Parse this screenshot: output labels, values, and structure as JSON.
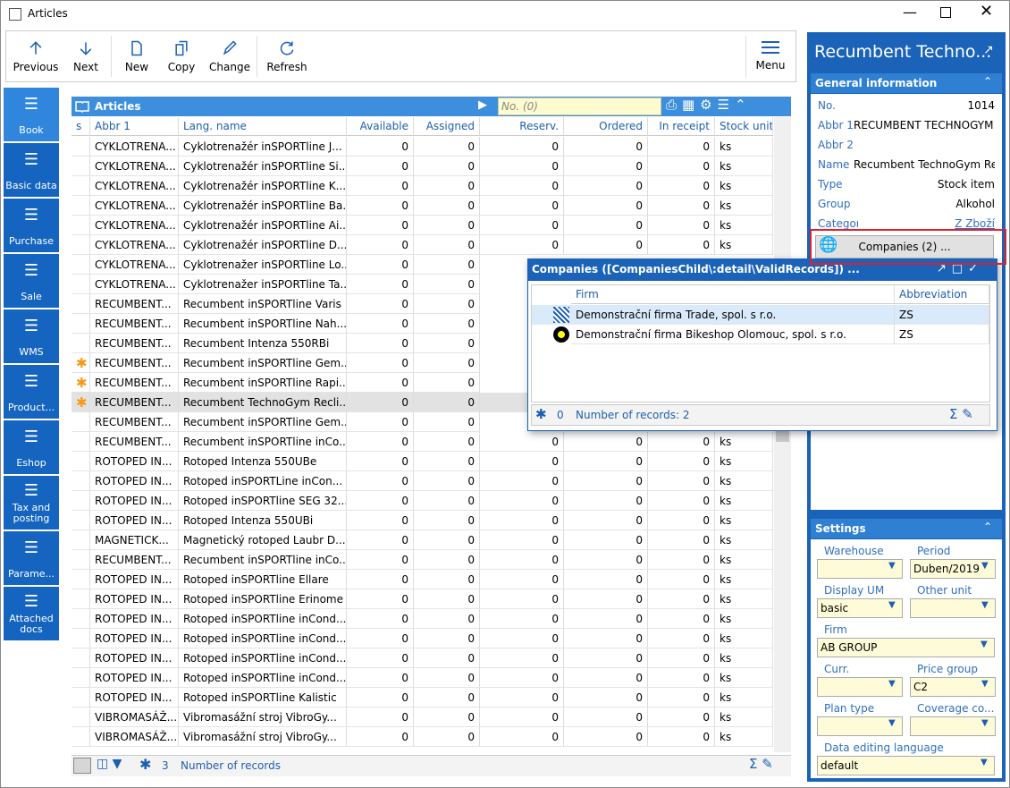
{
  "window": {
    "title": "Articles"
  },
  "toolbar": {
    "buttons": [
      "Previous",
      "Next",
      "New",
      "Copy",
      "Change",
      "Refresh"
    ],
    "menu": "Menu"
  },
  "sidebar": {
    "items": [
      "Book",
      "Basic data",
      "Purchase",
      "Sale",
      "WMS",
      "Product...",
      "Eshop",
      "Tax and posting",
      "Parame...",
      "Attached docs"
    ]
  },
  "grid": {
    "title": "Articles",
    "search_placeholder": "No. (0)",
    "columns": [
      "s",
      "Abbr 1",
      "Lang. name",
      "Available",
      "Assigned",
      "Reserv.",
      "Ordered",
      "In receipt",
      "Stock unit"
    ],
    "rows": [
      {
        "cells": [
          "CYKLOTRENA...",
          "Cyklotrenažér inSPORTline J...",
          0,
          0,
          0,
          0,
          0,
          "ks"
        ]
      },
      {
        "cells": [
          "CYKLOTRENA...",
          "Cyklotrenažér inSPORTline Si...",
          0,
          0,
          0,
          0,
          0,
          "ks"
        ]
      },
      {
        "cells": [
          "CYKLOTRENA...",
          "Cyklotrenažér inSPORTline K...",
          0,
          0,
          0,
          0,
          0,
          "ks"
        ]
      },
      {
        "cells": [
          "CYKLOTRENA...",
          "Cyklotrenažér inSPORTline Ba...",
          0,
          0,
          0,
          0,
          0,
          "ks"
        ]
      },
      {
        "cells": [
          "CYKLOTRENA...",
          "Cyklotrenažér inSPORTline Ai...",
          0,
          0,
          0,
          0,
          0,
          "ks"
        ]
      },
      {
        "cells": [
          "CYKLOTRENA...",
          "Cyklotrenažér inSPORTline D...",
          0,
          0,
          0,
          0,
          0,
          "ks"
        ]
      },
      {
        "cells": [
          "CYKLOTRENA...",
          "Cyklotrenažer inSPORTline Lo...",
          0,
          0,
          null,
          null,
          null,
          null
        ]
      },
      {
        "cells": [
          "CYKLOTRENA...",
          "Cyklotrenažer inSPORTline Ta...",
          0,
          0,
          null,
          null,
          null,
          null
        ]
      },
      {
        "cells": [
          "RECUMBENT...",
          "Recumbent inSPORTline Varis",
          0,
          0,
          null,
          null,
          null,
          null
        ]
      },
      {
        "cells": [
          "RECUMBENT...",
          "Recumbent inSPORTline Nah...",
          0,
          0,
          null,
          null,
          null,
          null
        ]
      },
      {
        "cells": [
          "RECUMBENT...",
          "Recumbent Intenza 550RBi",
          0,
          0,
          null,
          null,
          null,
          null
        ]
      },
      {
        "s": true,
        "cells": [
          "RECUMBENT...",
          "Recumbent inSPORTline Gem...",
          0,
          0,
          null,
          null,
          null,
          null
        ]
      },
      {
        "s": true,
        "cells": [
          "RECUMBENT...",
          "Recumbent inSPORTline Rapi...",
          0,
          0,
          null,
          null,
          null,
          null
        ]
      },
      {
        "s": true,
        "selected": true,
        "cells": [
          "RECUMBENT...",
          "Recumbent TechnoGym Recli...",
          0,
          0,
          null,
          null,
          null,
          null
        ]
      },
      {
        "cells": [
          "RECUMBENT...",
          "Recumbent inSPORTline Gem...",
          0,
          0,
          null,
          null,
          null,
          null
        ]
      },
      {
        "cells": [
          "RECUMBENT...",
          "Recumbent inSPORTline inCo...",
          0,
          0,
          0,
          0,
          0,
          "ks"
        ]
      },
      {
        "cells": [
          "ROTOPED IN...",
          "Rotoped Intenza 550UBe",
          0,
          0,
          0,
          0,
          0,
          "ks"
        ]
      },
      {
        "cells": [
          "ROTOPED IN...",
          "Rotoped inSPORTLine inCon...",
          0,
          0,
          0,
          0,
          0,
          "ks"
        ]
      },
      {
        "cells": [
          "ROTOPED IN...",
          "Rotoped inSPORTline SEG 32...",
          0,
          0,
          0,
          0,
          0,
          "ks"
        ]
      },
      {
        "cells": [
          "ROTOPED IN...",
          "Rotoped Intenza 550UBi",
          0,
          0,
          0,
          0,
          0,
          "ks"
        ]
      },
      {
        "cells": [
          "MAGNETICK...",
          "Magnetický rotoped Laubr D...",
          0,
          0,
          0,
          0,
          0,
          "ks"
        ]
      },
      {
        "cells": [
          "RECUMBENT...",
          "Recumbent inSPORTline inCo...",
          0,
          0,
          0,
          0,
          0,
          "ks"
        ]
      },
      {
        "cells": [
          "ROTOPED IN...",
          "Rotoped inSPORTline Ellare",
          0,
          0,
          0,
          0,
          0,
          "ks"
        ]
      },
      {
        "cells": [
          "ROTOPED IN...",
          "Rotoped inSPORTline Erinome",
          0,
          0,
          0,
          0,
          0,
          "ks"
        ]
      },
      {
        "cells": [
          "ROTOPED IN...",
          "Rotoped inSPORTline inCond...",
          0,
          0,
          0,
          0,
          0,
          "ks"
        ]
      },
      {
        "cells": [
          "ROTOPED IN...",
          "Rotoped inSPORTline inCond...",
          0,
          0,
          0,
          0,
          0,
          "ks"
        ]
      },
      {
        "cells": [
          "ROTOPED IN...",
          "Rotoped inSPORTline inCond...",
          0,
          0,
          0,
          0,
          0,
          "ks"
        ]
      },
      {
        "cells": [
          "ROTOPED IN...",
          "Rotoped inSPORTline inCond...",
          0,
          0,
          0,
          0,
          0,
          "ks"
        ]
      },
      {
        "cells": [
          "ROTOPED IN...",
          "Rotoped inSPORTline Kalistic",
          0,
          0,
          0,
          0,
          0,
          "ks"
        ]
      },
      {
        "cells": [
          "VIBROMASÁŽ...",
          "Vibromasážní stroj VibroGy...",
          0,
          0,
          0,
          0,
          0,
          "ks"
        ]
      },
      {
        "cells": [
          "VIBROMASÁŽ...",
          "Vibromasážní stroj VibroGy...",
          0,
          0,
          0,
          0,
          0,
          "ks"
        ]
      }
    ],
    "footer": {
      "count": 3,
      "label": "Number of records"
    }
  },
  "detail": {
    "title": "Recumbent Techno...",
    "general": {
      "header": "General information",
      "fields": [
        [
          "No.",
          "1014"
        ],
        [
          "Abbr 1",
          "RECUMBENT TECHNOGYM ..."
        ],
        [
          "Abbr 2",
          null
        ],
        [
          "Name",
          "Recumbent TechnoGym Recl..."
        ],
        [
          "Type",
          "Stock item"
        ],
        [
          "Group",
          "Alkohol"
        ],
        [
          "Category",
          "Z Zboží"
        ]
      ],
      "companies_button": "Companies (2) ..."
    },
    "settings": {
      "header": "Settings",
      "fields": [
        [
          "Warehouse",
          null
        ],
        [
          "Period",
          "Duben/2019"
        ],
        [
          "Display UM",
          "basic"
        ],
        [
          "Other unit",
          null
        ],
        [
          "Firm",
          "AB GROUP"
        ],
        [
          "Curr.",
          null
        ],
        [
          "Price group",
          "C2"
        ],
        [
          "Plan type",
          null
        ],
        [
          "Coverage co...",
          null
        ],
        [
          "Data editing language",
          "default"
        ]
      ]
    }
  },
  "popup": {
    "title": "Companies ([CompaniesChild\\:detail\\ValidRecords]) ...",
    "columns": [
      "Firm",
      "Abbreviation"
    ],
    "rows": [
      [
        "Demonstrační firma Trade, spol. s r.o.",
        "ZS"
      ],
      [
        "Demonstrační firma Bikeshop Olomouc, spol. s r.o.",
        "ZS"
      ]
    ],
    "footer": {
      "count": 0,
      "label": "Number of records: 2"
    }
  }
}
